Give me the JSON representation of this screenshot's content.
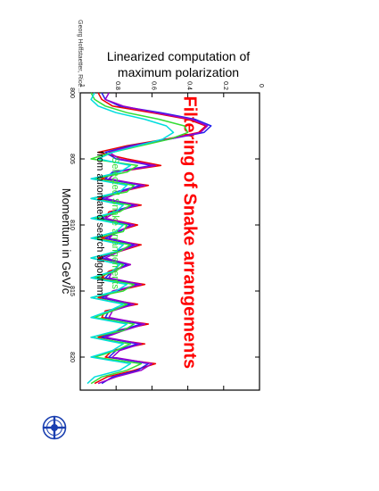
{
  "page": {
    "title": "Filtering of Snake arrangements",
    "subtitle_line1": "Linearized computation of",
    "subtitle_line2": "maximum polarization",
    "side_note": "Georg Hoffstaetter, Rice ...",
    "logo": "desy-logo"
  },
  "chart_data": {
    "type": "line",
    "title": "",
    "xlabel": "Momentum in GeV/c",
    "ylabel": "",
    "xlim": [
      800,
      822.5
    ],
    "ylim": [
      0,
      1
    ],
    "x_ticks": [
      800,
      805,
      810,
      815,
      820
    ],
    "y_ticks": [
      0,
      0.2,
      0.4,
      0.6,
      0.8,
      1
    ],
    "annotation_line1": "Selected Snake arrangements",
    "annotation_line2": "from automated search algorithm",
    "annotation_colors": [
      "#33dd33",
      "#000000"
    ],
    "grid": false,
    "colors": {
      "red": "#ee0000",
      "blue": "#2222ee",
      "purple": "#9900cc",
      "green": "#33dd33",
      "cyan": "#00dddd"
    },
    "series_x": [
      800,
      800.5,
      801,
      801.5,
      802,
      802.5,
      803,
      803.5,
      804,
      804.5,
      805,
      805.5,
      806,
      806.5,
      807,
      807.5,
      808,
      808.5,
      809,
      809.5,
      810,
      810.5,
      811,
      811.5,
      812,
      812.5,
      813,
      813.5,
      814,
      814.5,
      815,
      815.5,
      816,
      816.5,
      817,
      817.5,
      818,
      818.5,
      819,
      819.5,
      820,
      820.5,
      821,
      821.5,
      822
    ],
    "series": [
      {
        "color": "red",
        "values": [
          0.9,
          0.88,
          0.82,
          0.6,
          0.4,
          0.3,
          0.34,
          0.52,
          0.74,
          0.9,
          0.74,
          0.55,
          0.8,
          0.88,
          0.62,
          0.78,
          0.9,
          0.66,
          0.84,
          0.86,
          0.68,
          0.8,
          0.88,
          0.66,
          0.78,
          0.9,
          0.72,
          0.84,
          0.88,
          0.64,
          0.8,
          0.9,
          0.68,
          0.86,
          0.88,
          0.62,
          0.8,
          0.9,
          0.64,
          0.82,
          0.86,
          0.58,
          0.7,
          0.85,
          0.92
        ]
      },
      {
        "color": "blue",
        "values": [
          0.88,
          0.86,
          0.78,
          0.55,
          0.36,
          0.27,
          0.31,
          0.5,
          0.72,
          0.86,
          0.8,
          0.6,
          0.82,
          0.86,
          0.66,
          0.8,
          0.88,
          0.7,
          0.82,
          0.88,
          0.72,
          0.78,
          0.86,
          0.7,
          0.8,
          0.88,
          0.74,
          0.82,
          0.86,
          0.68,
          0.8,
          0.88,
          0.72,
          0.84,
          0.86,
          0.66,
          0.78,
          0.88,
          0.68,
          0.8,
          0.84,
          0.62,
          0.68,
          0.82,
          0.88
        ]
      },
      {
        "color": "purple",
        "values": [
          0.84,
          0.86,
          0.76,
          0.58,
          0.38,
          0.29,
          0.33,
          0.5,
          0.7,
          0.84,
          0.78,
          0.58,
          0.8,
          0.84,
          0.64,
          0.78,
          0.86,
          0.68,
          0.8,
          0.86,
          0.7,
          0.8,
          0.84,
          0.68,
          0.78,
          0.86,
          0.72,
          0.82,
          0.84,
          0.66,
          0.82,
          0.86,
          0.7,
          0.82,
          0.84,
          0.64,
          0.76,
          0.86,
          0.66,
          0.78,
          0.82,
          0.6,
          0.66,
          0.8,
          0.9
        ]
      },
      {
        "color": "green",
        "values": [
          0.94,
          0.92,
          0.86,
          0.74,
          0.56,
          0.42,
          0.4,
          0.5,
          0.66,
          0.82,
          0.94,
          0.68,
          0.74,
          0.92,
          0.7,
          0.74,
          0.94,
          0.72,
          0.78,
          0.92,
          0.74,
          0.76,
          0.92,
          0.72,
          0.78,
          0.94,
          0.76,
          0.8,
          0.92,
          0.7,
          0.76,
          0.94,
          0.74,
          0.82,
          0.92,
          0.7,
          0.76,
          0.94,
          0.72,
          0.8,
          0.92,
          0.66,
          0.74,
          0.88,
          0.94
        ]
      },
      {
        "color": "cyan",
        "values": [
          0.92,
          0.94,
          0.9,
          0.8,
          0.64,
          0.52,
          0.48,
          0.54,
          0.68,
          0.82,
          0.9,
          0.72,
          0.78,
          0.94,
          0.74,
          0.78,
          0.94,
          0.76,
          0.8,
          0.94,
          0.76,
          0.8,
          0.94,
          0.76,
          0.8,
          0.94,
          0.78,
          0.82,
          0.94,
          0.74,
          0.8,
          0.94,
          0.76,
          0.84,
          0.94,
          0.74,
          0.8,
          0.94,
          0.76,
          0.82,
          0.94,
          0.72,
          0.78,
          0.92,
          0.96
        ]
      }
    ]
  }
}
